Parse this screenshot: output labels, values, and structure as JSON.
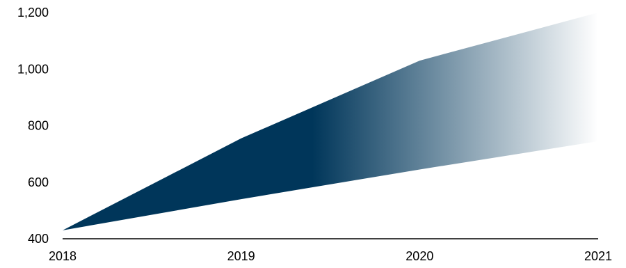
{
  "chart_data": {
    "type": "area",
    "title": "",
    "xlabel": "",
    "ylabel": "",
    "x": [
      2018,
      2019,
      2020,
      2021
    ],
    "x_tick_labels": [
      "2018",
      "2019",
      "2020",
      "2021"
    ],
    "y_tick_labels": [
      "400",
      "600",
      "800",
      "1,000",
      "1,200"
    ],
    "y_ticks": [
      400,
      600,
      800,
      1000,
      1200
    ],
    "ylim": [
      400,
      1200
    ],
    "xlim": [
      2018,
      2021
    ],
    "series": [
      {
        "role": "upper",
        "values": [
          430,
          755,
          1030,
          1200
        ]
      },
      {
        "role": "lower",
        "values": [
          430,
          540,
          645,
          745
        ]
      }
    ],
    "fill": {
      "style": "horizontal-gradient",
      "color": "#00365a",
      "solid_until_x": 2019.4,
      "fade_to_color": "#ffffff",
      "fade_end_x": 2021
    },
    "grid": false,
    "legend": "none"
  }
}
